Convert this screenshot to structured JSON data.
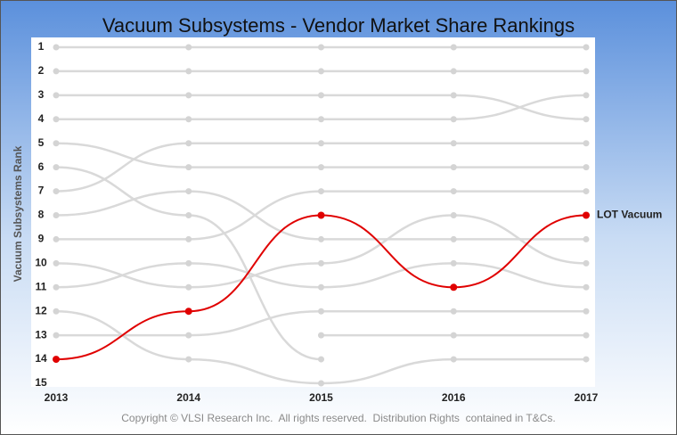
{
  "chart_data": {
    "type": "bump",
    "title": "Vacuum Subsystems - Vendor Market Share Rankings",
    "y_label": "Vacuum Subsystems Rank",
    "footnote": "Copyright © VLSI Research Inc.  All rights reserved.  Distribution Rights  contained in T&Cs.",
    "x": [
      2013,
      2014,
      2015,
      2016,
      2017
    ],
    "ylim": [
      15,
      1
    ],
    "yticks": [
      1,
      2,
      3,
      4,
      5,
      6,
      7,
      8,
      9,
      10,
      11,
      12,
      13,
      14,
      15
    ],
    "series": [
      {
        "color": "#d9d9d9",
        "values": [
          1,
          1,
          1,
          1,
          1
        ]
      },
      {
        "color": "#d9d9d9",
        "values": [
          2,
          2,
          2,
          2,
          2
        ]
      },
      {
        "color": "#d9d9d9",
        "values": [
          3,
          3,
          3,
          3,
          4
        ]
      },
      {
        "color": "#d9d9d9",
        "values": [
          4,
          4,
          4,
          4,
          3
        ]
      },
      {
        "color": "#d9d9d9",
        "values": [
          5,
          6,
          6,
          6,
          6
        ]
      },
      {
        "color": "#d9d9d9",
        "values": [
          7,
          5,
          5,
          5,
          5
        ]
      },
      {
        "color": "#d9d9d9",
        "values": [
          6,
          8,
          14,
          null,
          null
        ]
      },
      {
        "color": "#d9d9d9",
        "values": [
          8,
          7,
          9,
          9,
          9
        ]
      },
      {
        "color": "#d9d9d9",
        "values": [
          9,
          9,
          7,
          7,
          7
        ]
      },
      {
        "color": "#d9d9d9",
        "values": [
          10,
          11,
          10,
          8,
          10
        ]
      },
      {
        "color": "#d9d9d9",
        "values": [
          11,
          10,
          11,
          10,
          11
        ]
      },
      {
        "color": "#d9d9d9",
        "values": [
          12,
          14,
          15,
          14,
          14
        ]
      },
      {
        "color": "#d9d9d9",
        "values": [
          13,
          13,
          12,
          12,
          12
        ]
      },
      {
        "color": "#d9d9d9",
        "values": [
          null,
          null,
          13,
          13,
          13
        ]
      },
      {
        "name": "LOT Vacuum",
        "color": "#e00000",
        "values": [
          14,
          12,
          8,
          11,
          8
        ]
      }
    ]
  }
}
